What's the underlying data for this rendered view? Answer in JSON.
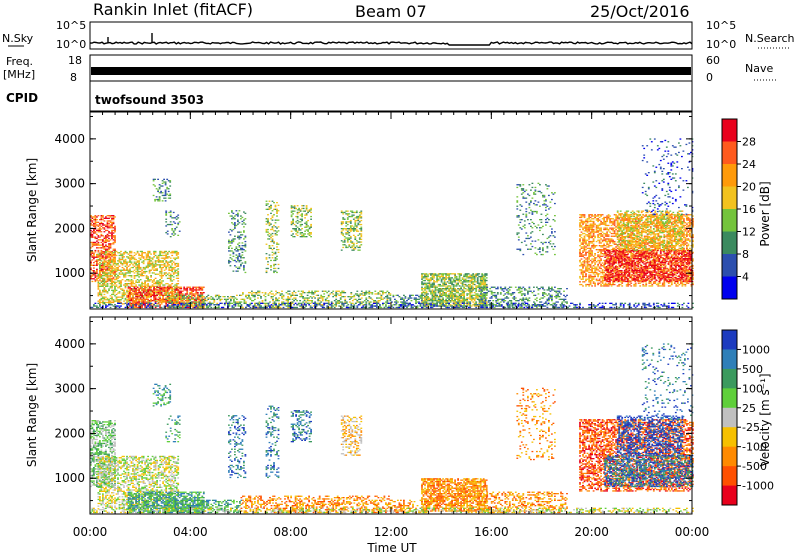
{
  "header": {
    "station": "Rankin Inlet (fitACF)",
    "beam": "Beam 07",
    "date": "25/Oct/2016"
  },
  "top_panels": {
    "nsky_label": "N.Sky",
    "nsky_ticks": [
      "10^5",
      "10^0"
    ],
    "nsearch_label": "N.Search",
    "nsearch_ticks": [
      "10^5",
      "10^0"
    ],
    "freq_label": "Freq.",
    "freq_unit": "[MHz]",
    "freq_ticks": [
      "18",
      "8"
    ],
    "nave_label": "Nave",
    "nave_ticks": [
      "60",
      "0"
    ],
    "cpid_label": "CPID",
    "cpid_value": "twofsound 3503"
  },
  "chart_data": [
    {
      "type": "heatmap",
      "name": "power",
      "ylabel": "Slant Range [km]",
      "y_ticks": [
        1000,
        2000,
        3000,
        4000
      ],
      "ylim": [
        200,
        4600
      ],
      "xlim": [
        0,
        24
      ],
      "x_ticks": [
        "00:00",
        "04:00",
        "08:00",
        "12:00",
        "16:00",
        "20:00",
        "00:00"
      ],
      "colorbar": {
        "label": "Power [dB]",
        "ticks": [
          "28",
          "24",
          "20",
          "16",
          "12",
          "8",
          "4"
        ],
        "colors": [
          "#e8001c",
          "#ff5a1e",
          "#ff9a0a",
          "#f2c21f",
          "#74c43c",
          "#3b8a5f",
          "#2c4fae",
          "#0000ee"
        ]
      }
    },
    {
      "type": "heatmap",
      "name": "velocity",
      "ylabel": "Slant Range [km]",
      "y_ticks": [
        1000,
        2000,
        3000,
        4000
      ],
      "ylim": [
        200,
        4600
      ],
      "xlim": [
        0,
        24
      ],
      "xlabel": "Time UT",
      "x_ticks": [
        "00:00",
        "04:00",
        "08:00",
        "12:00",
        "16:00",
        "20:00",
        "00:00"
      ],
      "colorbar": {
        "label": "Velocity [m s⁻¹]",
        "ticks": [
          "1000",
          "500",
          "100",
          "25",
          "-25",
          "-100",
          "-500",
          "-1000"
        ],
        "colors": [
          "#1c3bbf",
          "#2f7fb8",
          "#3b9a5e",
          "#5fcf3a",
          "#c0c0c0",
          "#f6c000",
          "#ff8a00",
          "#ff5000",
          "#e8001c"
        ]
      }
    }
  ]
}
